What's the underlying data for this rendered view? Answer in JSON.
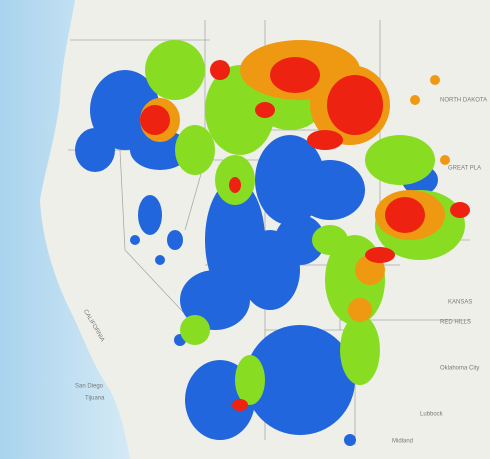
{
  "map": {
    "labels": {
      "north_dakota": "NORTH DAKOTA",
      "great_plains": "GREAT PLA",
      "kansas": "KANSAS",
      "red_hills": "RED HILLS",
      "oklahoma_city": "Oklahoma City",
      "lubbock": "Lubbock",
      "midland": "Midland",
      "tijuana": "Tijuana",
      "san_diego": "San Diego",
      "california": "CALIFORNIA"
    }
  }
}
